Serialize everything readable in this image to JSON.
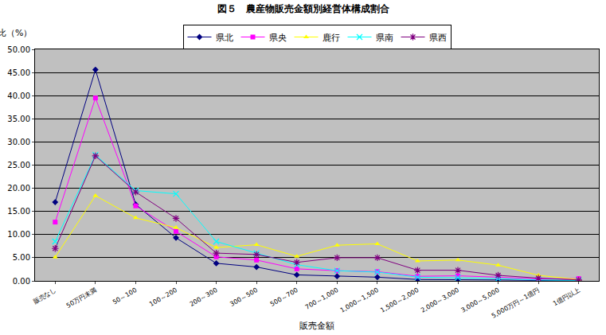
{
  "chart_data": {
    "type": "line",
    "title": "図５　農産物販売金額別経営体構成割合",
    "y_label": "構成比（%）",
    "x_label": "販売金額",
    "categories": [
      "販売なし",
      "50万円未満",
      "50～100",
      "100～200",
      "200～300",
      "300～500",
      "500～700",
      "700～1,000",
      "1,000～1,500",
      "1,500～2,000",
      "2,000～3,000",
      "3,000～5,000",
      "5,000万円～1億円",
      "1億円以上"
    ],
    "series": [
      {
        "name": "県北",
        "color": "#000080",
        "marker": "diamond",
        "values": [
          17.0,
          45.6,
          16.5,
          9.3,
          3.8,
          3.0,
          1.3,
          1.0,
          0.8,
          0.3,
          0.3,
          0.2,
          0.1,
          0.1
        ]
      },
      {
        "name": "県央",
        "color": "#FF00FF",
        "marker": "square",
        "values": [
          12.7,
          39.5,
          16.2,
          10.7,
          5.2,
          4.5,
          2.6,
          2.2,
          2.0,
          1.0,
          1.1,
          0.8,
          0.4,
          0.5
        ]
      },
      {
        "name": "鹿行",
        "color": "#FFFF00",
        "marker": "triangle",
        "values": [
          5.1,
          18.4,
          13.6,
          11.5,
          7.2,
          7.8,
          5.3,
          7.7,
          8.0,
          4.3,
          4.5,
          3.4,
          1.2,
          0.3
        ]
      },
      {
        "name": "県南",
        "color": "#00FFFF",
        "marker": "x",
        "values": [
          8.5,
          27.2,
          19.5,
          18.8,
          8.5,
          6.0,
          3.5,
          2.2,
          1.9,
          0.8,
          0.7,
          0.5,
          0.2,
          0.1
        ]
      },
      {
        "name": "県西",
        "color": "#800080",
        "marker": "asterisk",
        "values": [
          7.0,
          27.0,
          19.2,
          13.5,
          6.0,
          5.7,
          4.0,
          5.0,
          5.0,
          2.3,
          2.3,
          1.2,
          0.6,
          0.2
        ]
      }
    ],
    "ylim": [
      0,
      50
    ],
    "yticks": [
      {
        "value": 0,
        "label": "0.00"
      },
      {
        "value": 5,
        "label": "5.00"
      },
      {
        "value": 10,
        "label": "10.00"
      },
      {
        "value": 15,
        "label": "15.00"
      },
      {
        "value": 20,
        "label": "20.00"
      },
      {
        "value": 25,
        "label": "25.00"
      },
      {
        "value": 30,
        "label": "30.00"
      },
      {
        "value": 35,
        "label": "35.00"
      },
      {
        "value": 40,
        "label": "40.00"
      },
      {
        "value": 45,
        "label": "45.00"
      },
      {
        "value": 50,
        "label": "50.00"
      }
    ],
    "grid": true,
    "legend": "top"
  }
}
